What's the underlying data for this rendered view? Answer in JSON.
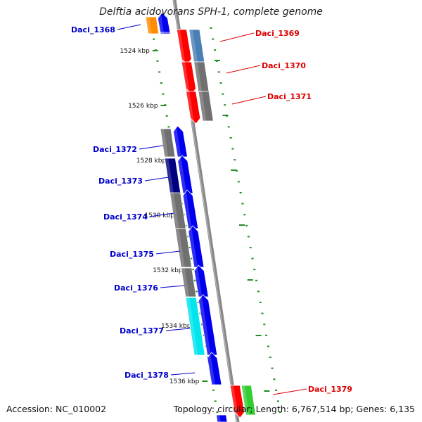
{
  "title": "Delftia acidovorans SPH-1, complete genome",
  "accession": "Accession: NC_010002",
  "topology": "Topology: circular; Length: 6,767,514 bp; Genes: 6,135",
  "colors": {
    "minus_label": "#0000cc",
    "plus_label": "#dd0000",
    "backbone": "#888888",
    "tick": "#228b22"
  },
  "ticks": [
    "1524 kbp",
    "1526 kbp",
    "1528 kbp",
    "1530 kbp",
    "1532 kbp",
    "1534 kbp",
    "1536 kbp"
  ],
  "minus_genes": [
    "Daci_1368",
    "Daci_1372",
    "Daci_1373",
    "Daci_1374",
    "Daci_1375",
    "Daci_1376",
    "Daci_1377",
    "Daci_1378"
  ],
  "plus_genes": [
    "Daci_1369",
    "Daci_1370",
    "Daci_1371",
    "Daci_1379"
  ]
}
